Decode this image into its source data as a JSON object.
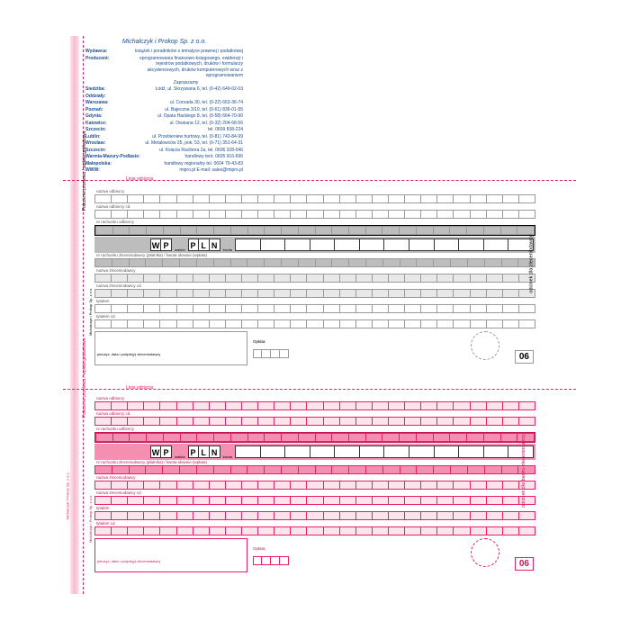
{
  "company": {
    "title": "Michalczyk i Prokop Sp. z o.o.",
    "wydawca_lbl": "Wydawca:",
    "wydawca": "książek i poradników o tematyce prawnej i podatkowej",
    "producent_lbl": "Producent:",
    "producent": "oprogramowania finansowo-księgowego, ewidencji i rejestrów podatkowych, druków i formularzy akcydensowych, druków komputerowych wraz z oprogramowaniem",
    "zapr": "Zapraszamy",
    "siedziba_lbl": "Siedziba:",
    "siedziba": "Łódź, ul. Skrzywana 6, tel. (0-42) 649-02-03",
    "oddzialy_lbl": "Oddziały:",
    "w1_lbl": "Warszawa:",
    "w1": "ul. Conrada 30, tel. (0-22) 663-36-74",
    "w2_lbl": "Poznań:",
    "w2": "ul. Bajeczna 3/10, tel. (0-61) 836-01-55",
    "w3_lbl": "Gdynia:",
    "w3": "ul. Opata Hackiego 8, tel. (0-58) 664-70-90",
    "w4_lbl": "Katowice:",
    "w4": "ul. Owsiana 12, tel. (0-32) 204-68-56",
    "w5_lbl": "Szczecin:",
    "w5": "tel. 0609 838-224",
    "w6_lbl": "Lublin:",
    "w6": "ul. Przebieniew hurtowy, tel. (0-81) 743-84-99",
    "w7_lbl": "Wrocław:",
    "w7": "ul. Metalowców 25, pok. 53, tel. (0-71) 351-64-31",
    "w8_lbl": "Szczecin:",
    "w8": "ul. Księcia Racibora 2a, tel. 0606 328-046",
    "w9_lbl": "Warmia-Mazury-Podlasie:",
    "w9": "handlowy tent. 0605 916-696",
    "w10_lbl": "Małopolska:",
    "w10": "handlowy regionalny tel. 0604 79-43-83",
    "www_lbl": "WWW:",
    "www": "mipro.pl    E-mail: sales@mipro.pl"
  },
  "cut": {
    "label": "Linia odcięcia"
  },
  "form": {
    "r1": "nazwa odbiorcy",
    "r2": "nazwa odbiorcy cd.",
    "r3": "nr rachunku odbiorcy",
    "r4": "nr rachunku zleceniodawcy (płatnika) / kwota słownie (wpłata)",
    "r5": "nazwa zleceniodawcy",
    "r6": "nazwa zleceniodawcy cd.",
    "r7": "tytułem",
    "r8": "tytułem cd.",
    "wp_w": "W",
    "wp_p": "P",
    "waluta_lbl": "waluta",
    "waluta": "PLN",
    "kwota_lbl": "kwota",
    "vleft": "Polecenie przelewu / wpłata gotówkowa",
    "vright_gray": "odcinek dla zleceniodawcy",
    "vright_pink": "odcinek dla banku zleceniodawcy",
    "oplata": "Opłata:",
    "sig": "pieczęć, data i podpis(y) zleceniodawcy",
    "code": "06",
    "barcode": "Michalczyk i Prokop Sp. z o.o."
  },
  "colors": {
    "pink": "#e91e63",
    "pink_light": "#fce4ec",
    "pink_mid": "#f8bbd0",
    "gray": "#bdbdbd",
    "blue": "#1a4d8f"
  }
}
